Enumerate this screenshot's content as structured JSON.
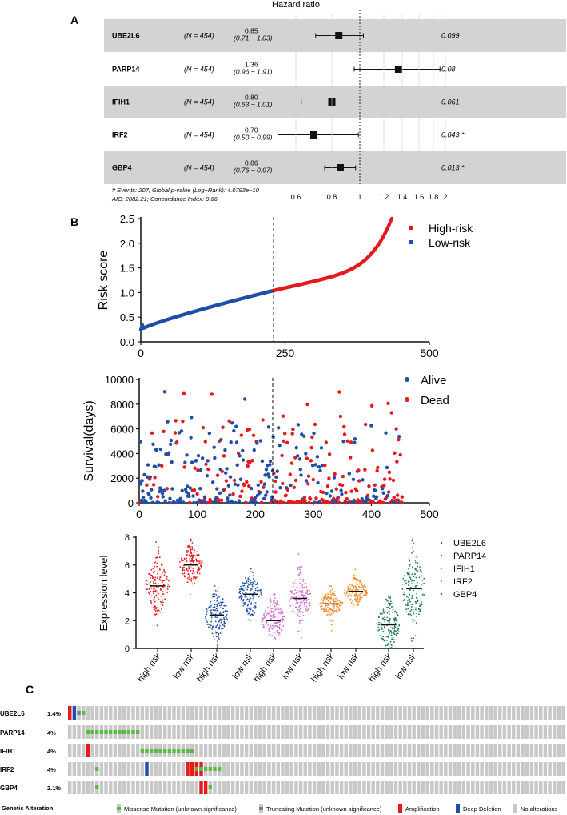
{
  "panel_a": {
    "label": "A",
    "title": "Hazard ratio",
    "rows": [
      {
        "gene": "UBE2L6",
        "n": "(N = 454)",
        "hr": "0.85",
        "ci": "(0.71 − 1.03)",
        "p": "0.099",
        "hr_value": 0.85,
        "lo": 0.71,
        "hi": 1.03
      },
      {
        "gene": "PARP14",
        "n": "(N = 454)",
        "hr": "1.36",
        "ci": "(0.96 − 1.91)",
        "p": "0.08",
        "hr_value": 1.36,
        "lo": 0.96,
        "hi": 1.91
      },
      {
        "gene": "IFIH1",
        "n": "(N = 454)",
        "hr": "0.80",
        "ci": "(0.63 − 1.01)",
        "p": "0.061",
        "hr_value": 0.8,
        "lo": 0.63,
        "hi": 1.01
      },
      {
        "gene": "IRF2",
        "n": "(N = 454)",
        "hr": "0.70",
        "ci": "(0.50 − 0.99)",
        "p": "0.043 *",
        "hr_value": 0.7,
        "lo": 0.5,
        "hi": 0.99
      },
      {
        "gene": "GBP4",
        "n": "(N = 454)",
        "hr": "0.86",
        "ci": "(0.76 − 0.97)",
        "p": "0.013 *",
        "hr_value": 0.86,
        "lo": 0.76,
        "hi": 0.97
      }
    ],
    "footer1": "# Events: 207; Global p-value (Log−Rank): 4.0793e−10",
    "footer2": "AIC: 2082.21; Concordance Index: 0.66",
    "ticks": [
      "0.6",
      "0.8",
      "1",
      "1.2",
      "1.4",
      "1.6",
      "1.8",
      "2"
    ],
    "tick_values": [
      0.6,
      0.8,
      1,
      1.2,
      1.4,
      1.6,
      1.8,
      2
    ]
  },
  "panel_b": {
    "label": "B",
    "cutoff": 230
  },
  "panel_c": {
    "label": "C",
    "genes": [
      {
        "name": "UBE2L6",
        "pct": "1.4%"
      },
      {
        "name": "PARP14",
        "pct": "4%"
      },
      {
        "name": "IFIH1",
        "pct": "4%"
      },
      {
        "name": "IRF2",
        "pct": "4%"
      },
      {
        "name": "GBP4",
        "pct": "2.1%"
      }
    ],
    "legend_title": "Genetic Alteration",
    "legend": [
      {
        "label": "Missense Mutation (unknown significance)",
        "color": "#5fb846"
      },
      {
        "label": "Truncating Mutation (unknown significance)",
        "color": "#708090"
      },
      {
        "label": "Amplification",
        "color": "#e41a1c"
      },
      {
        "label": "Deep Deletion",
        "color": "#1f4fa8"
      },
      {
        "label": "No alterations",
        "color": "#c8c8c8"
      }
    ],
    "alterations": {
      "UBE2L6": {
        "amp": [
          0
        ],
        "del": [
          1
        ],
        "trunc": [
          2
        ],
        "miss": [
          3
        ]
      },
      "PARP14": {
        "miss": [
          4,
          5,
          6,
          7,
          8,
          9,
          10,
          11,
          12,
          13,
          14,
          15
        ]
      },
      "IFIH1": {
        "amp": [
          4
        ],
        "miss": [
          16,
          17,
          18,
          19,
          20,
          21,
          22,
          23,
          24,
          25,
          26,
          27
        ]
      },
      "IRF2": {
        "miss": [
          6,
          28,
          29,
          30,
          31,
          32,
          33
        ],
        "del": [
          17
        ],
        "amp": [
          26,
          27,
          28,
          29
        ]
      },
      "GBP4": {
        "miss": [
          6,
          31
        ],
        "amp": [
          29,
          30
        ]
      }
    },
    "columns": 110
  },
  "chart_data": [
    {
      "type": "scatter",
      "title": "",
      "xlabel": "",
      "ylabel": "Risk score",
      "xlim": [
        0,
        500
      ],
      "ylim": [
        0,
        2.5
      ],
      "xticks": [
        "0",
        "250",
        "500"
      ],
      "yticks": [
        "0.0",
        "0.5",
        "1.0",
        "1.5",
        "2.0",
        "2.5"
      ],
      "series": [
        {
          "name": "High-risk",
          "color": "#e41a1c",
          "x_range": [
            230,
            435
          ],
          "y_range": [
            1.04,
            2.5
          ]
        },
        {
          "name": "Low-risk",
          "color": "#1f4fa8",
          "x_range": [
            0,
            230
          ],
          "y_range": [
            0.25,
            1.04
          ]
        }
      ],
      "cutoff_x": 230
    },
    {
      "type": "scatter",
      "title": "",
      "xlabel": "",
      "ylabel": "Survival(days)",
      "xlim": [
        0,
        500
      ],
      "ylim": [
        0,
        10000
      ],
      "xticks": [
        "0",
        "100",
        "200",
        "300",
        "400",
        "500"
      ],
      "yticks": [
        "0",
        "2000",
        "4000",
        "6000",
        "8000",
        "10000"
      ],
      "series": [
        {
          "name": "Alive",
          "color": "#1f4fa8"
        },
        {
          "name": "Dead",
          "color": "#e41a1c"
        }
      ],
      "cutoff_x": 230
    },
    {
      "type": "scatter",
      "title": "",
      "xlabel": "",
      "ylabel": "Expression level",
      "ylim": [
        0,
        8
      ],
      "yticks": [
        "0",
        "2",
        "4",
        "6",
        "8"
      ],
      "categories": [
        "high risk",
        "low risk",
        "high risk",
        "low risk",
        "high risk",
        "low risk",
        "high risk",
        "low risk",
        "high risk",
        "low risk"
      ],
      "series": [
        {
          "name": "UBE2L6",
          "color": "#e41a1c",
          "high_mean": 4.5,
          "low_mean": 6.0,
          "high_sd": 1.0,
          "low_sd": 0.7
        },
        {
          "name": "PARP14",
          "color": "#1f4fa8",
          "high_mean": 2.4,
          "low_mean": 3.9,
          "high_sd": 0.9,
          "low_sd": 0.8
        },
        {
          "name": "IFIH1",
          "color": "#d36fd3",
          "high_mean": 2.0,
          "low_mean": 3.6,
          "high_sd": 0.8,
          "low_sd": 0.9
        },
        {
          "name": "IRF2",
          "color": "#f28c28",
          "high_mean": 3.2,
          "low_mean": 4.1,
          "high_sd": 0.5,
          "low_sd": 0.5
        },
        {
          "name": "GBP4",
          "color": "#1e7a4a",
          "high_mean": 1.7,
          "low_mean": 4.3,
          "high_sd": 0.9,
          "low_sd": 1.4
        }
      ]
    }
  ]
}
